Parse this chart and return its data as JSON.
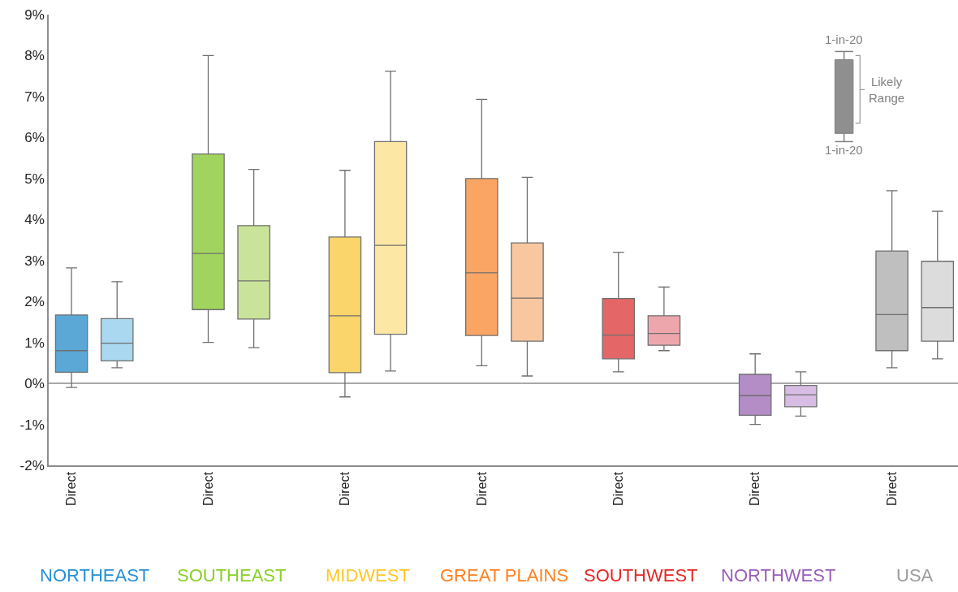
{
  "chart_data": {
    "type": "box",
    "categories": [
      "NORTHEAST",
      "SOUTHEAST",
      "MIDWEST",
      "GREAT PLAINS",
      "SOUTHWEST",
      "NORTHWEST",
      "USA"
    ],
    "ylim": [
      -2,
      9
    ],
    "yticks": [
      {
        "value": -2,
        "label": "-2%"
      },
      {
        "value": -1,
        "label": "-1%"
      },
      {
        "value": 0,
        "label": "0%"
      },
      {
        "value": 1,
        "label": "1%"
      },
      {
        "value": 2,
        "label": "2%"
      },
      {
        "value": 3,
        "label": "3%"
      },
      {
        "value": 4,
        "label": "4%"
      },
      {
        "value": 5,
        "label": "5%"
      },
      {
        "value": 6,
        "label": "6%"
      },
      {
        "value": 7,
        "label": "7%"
      },
      {
        "value": 8,
        "label": "8%"
      },
      {
        "value": 9,
        "label": "9%"
      }
    ],
    "grid": false,
    "ref_lines": [
      {
        "axis": "y",
        "value": 0,
        "color": "#8c8c8c"
      }
    ],
    "annotations": [
      "1-in-20",
      "Likely\nRange",
      "1-in-20"
    ],
    "series": [
      {
        "name": "Direct",
        "colors": [
          "#5ba7d6",
          "#a1d45e",
          "#f9d56b",
          "#fba564",
          "#e46666",
          "#b48dc7",
          "#bfbfbf"
        ],
        "boxes": [
          {
            "low": -0.1,
            "q1": 0.27,
            "median": 0.8,
            "q3": 1.67,
            "high": 2.82
          },
          {
            "low": 1.0,
            "q1": 1.8,
            "median": 3.17,
            "q3": 5.6,
            "high": 8.0
          },
          {
            "low": -0.33,
            "q1": 0.26,
            "median": 1.65,
            "q3": 3.57,
            "high": 5.2
          },
          {
            "low": 0.43,
            "q1": 1.17,
            "median": 2.7,
            "q3": 5.0,
            "high": 6.93
          },
          {
            "low": 0.28,
            "q1": 0.6,
            "median": 1.18,
            "q3": 2.07,
            "high": 3.2
          },
          {
            "low": -1.0,
            "q1": -0.78,
            "median": -0.3,
            "q3": 0.22,
            "high": 0.72
          },
          {
            "low": 0.38,
            "q1": 0.8,
            "median": 1.68,
            "q3": 3.23,
            "high": 4.7
          }
        ]
      },
      {
        "colors": [
          "#a9d8f0",
          "#c9e49a",
          "#fce8a4",
          "#f9c79f",
          "#eea6ad",
          "#d7bde3",
          "#dcdcdc"
        ],
        "boxes": [
          {
            "low": 0.38,
            "q1": 0.55,
            "median": 0.98,
            "q3": 1.58,
            "high": 2.48
          },
          {
            "low": 0.87,
            "q1": 1.57,
            "median": 2.5,
            "q3": 3.85,
            "high": 5.22
          },
          {
            "low": 0.3,
            "q1": 1.2,
            "median": 3.37,
            "q3": 5.9,
            "high": 7.62
          },
          {
            "low": 0.18,
            "q1": 1.03,
            "median": 2.08,
            "q3": 3.43,
            "high": 5.03
          },
          {
            "low": 0.8,
            "q1": 0.93,
            "median": 1.22,
            "q3": 1.65,
            "high": 2.35
          },
          {
            "low": -0.8,
            "q1": -0.57,
            "median": -0.28,
            "q3": -0.05,
            "high": 0.28
          },
          {
            "low": 0.6,
            "q1": 1.03,
            "median": 1.85,
            "q3": 2.98,
            "high": 4.2
          }
        ]
      }
    ]
  }
}
